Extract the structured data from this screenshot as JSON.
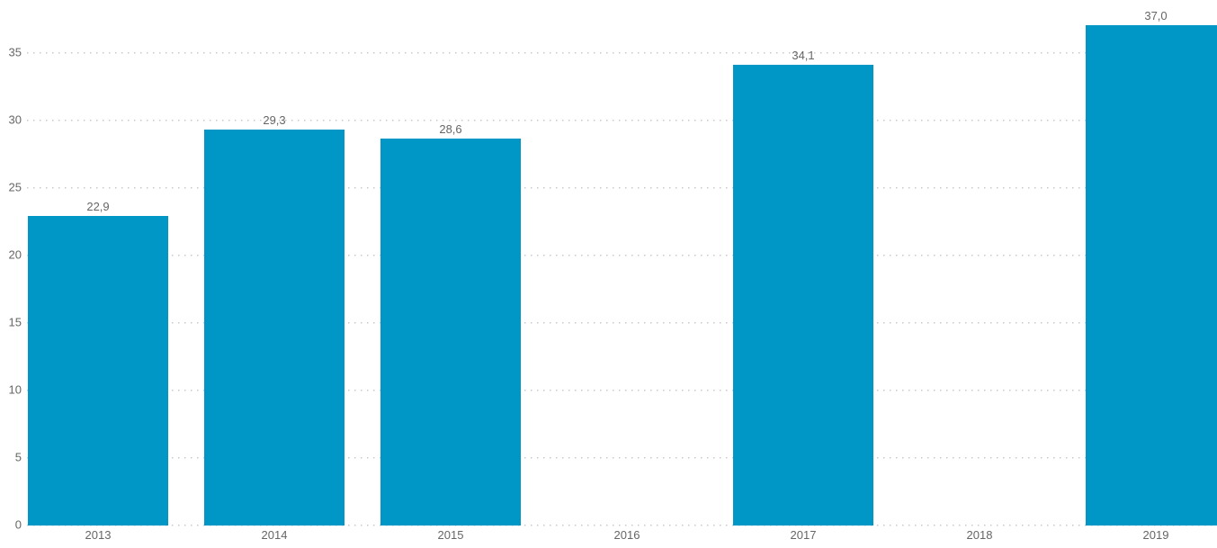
{
  "chart_data": {
    "type": "bar",
    "title": "",
    "subtitle": "",
    "xlabel": "",
    "ylabel": "",
    "categories": [
      "2013",
      "2014",
      "2015",
      "2016",
      "2017",
      "2018",
      "2019"
    ],
    "values": [
      22.9,
      29.3,
      28.6,
      null,
      34.1,
      null,
      37.0
    ],
    "value_labels": [
      "22,9",
      "29,3",
      "28,6",
      "",
      "34,1",
      "",
      "37,0"
    ],
    "yticks": [
      0,
      5,
      10,
      15,
      20,
      25,
      30,
      35
    ],
    "ylim": [
      0,
      37.5
    ],
    "grid": "horizontal-dotted",
    "legend": "none",
    "decimal_separator": ",",
    "colors": {
      "bar": "#0097c6",
      "label": "#666666",
      "gridline": "#c9c9c9",
      "background": "#ffffff"
    }
  }
}
